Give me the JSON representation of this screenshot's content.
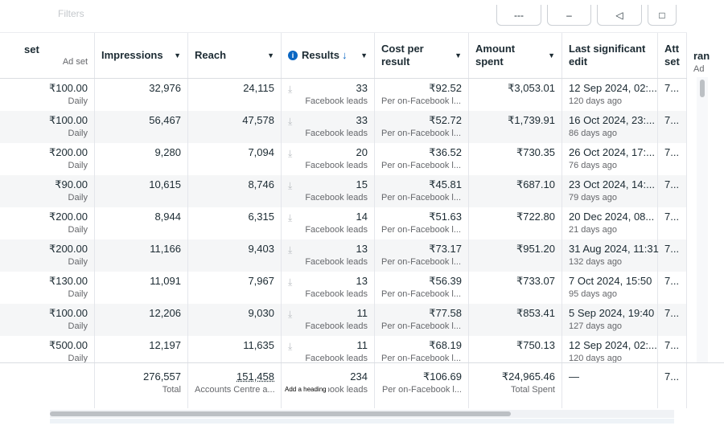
{
  "top": {
    "faint_text": "Filters"
  },
  "headers": [
    {
      "label": "set",
      "sub": "Ad set"
    },
    {
      "label": "Impressions"
    },
    {
      "label": "Reach"
    },
    {
      "label": "Results"
    },
    {
      "label": "Cost per result"
    },
    {
      "label": "Amount spent"
    },
    {
      "label": "Last significant edit"
    },
    {
      "label": "Att set"
    },
    {
      "label": "ran",
      "sub": "Ad"
    }
  ],
  "rows": [
    {
      "budget": "₹100.00",
      "budget_type": "Daily",
      "impressions": "32,976",
      "reach": "24,115",
      "results": "33",
      "results_type": "Facebook leads",
      "cpr": "₹92.52",
      "cpr_type": "Per on-Facebook l...",
      "spent": "₹3,053.01",
      "edit": "12 Sep 2024, 02:...",
      "edit_ago": "120 days ago",
      "att": "7..."
    },
    {
      "budget": "₹100.00",
      "budget_type": "Daily",
      "impressions": "56,467",
      "reach": "47,578",
      "results": "33",
      "results_type": "Facebook leads",
      "cpr": "₹52.72",
      "cpr_type": "Per on-Facebook l...",
      "spent": "₹1,739.91",
      "edit": "16 Oct 2024, 23:...",
      "edit_ago": "86 days ago",
      "att": "7..."
    },
    {
      "budget": "₹200.00",
      "budget_type": "Daily",
      "impressions": "9,280",
      "reach": "7,094",
      "results": "20",
      "results_type": "Facebook leads",
      "cpr": "₹36.52",
      "cpr_type": "Per on-Facebook l...",
      "spent": "₹730.35",
      "edit": "26 Oct 2024, 17:...",
      "edit_ago": "76 days ago",
      "att": "7..."
    },
    {
      "budget": "₹90.00",
      "budget_type": "Daily",
      "impressions": "10,615",
      "reach": "8,746",
      "results": "15",
      "results_type": "Facebook leads",
      "cpr": "₹45.81",
      "cpr_type": "Per on-Facebook l...",
      "spent": "₹687.10",
      "edit": "23 Oct 2024, 14:...",
      "edit_ago": "79 days ago",
      "att": "7..."
    },
    {
      "budget": "₹200.00",
      "budget_type": "Daily",
      "impressions": "8,944",
      "reach": "6,315",
      "results": "14",
      "results_type": "Facebook leads",
      "cpr": "₹51.63",
      "cpr_type": "Per on-Facebook l...",
      "spent": "₹722.80",
      "edit": "20 Dec 2024, 08...",
      "edit_ago": "21 days ago",
      "att": "7..."
    },
    {
      "budget": "₹200.00",
      "budget_type": "Daily",
      "impressions": "11,166",
      "reach": "9,403",
      "results": "13",
      "results_type": "Facebook leads",
      "cpr": "₹73.17",
      "cpr_type": "Per on-Facebook l...",
      "spent": "₹951.20",
      "edit": "31 Aug 2024, 11:31",
      "edit_ago": "132 days ago",
      "att": "7..."
    },
    {
      "budget": "₹130.00",
      "budget_type": "Daily",
      "impressions": "11,091",
      "reach": "7,967",
      "results": "13",
      "results_type": "Facebook leads",
      "cpr": "₹56.39",
      "cpr_type": "Per on-Facebook l...",
      "spent": "₹733.07",
      "edit": "7 Oct 2024, 15:50",
      "edit_ago": "95 days ago",
      "att": "7..."
    },
    {
      "budget": "₹100.00",
      "budget_type": "Daily",
      "impressions": "12,206",
      "reach": "9,030",
      "results": "11",
      "results_type": "Facebook leads",
      "cpr": "₹77.58",
      "cpr_type": "Per on-Facebook l...",
      "spent": "₹853.41",
      "edit": "5 Sep 2024, 19:40",
      "edit_ago": "127 days ago",
      "att": "7..."
    },
    {
      "budget": "₹500.00",
      "budget_type": "Daily",
      "impressions": "12,197",
      "reach": "11,635",
      "results": "11",
      "results_type": "Facebook leads",
      "cpr": "₹68.19",
      "cpr_type": "Per on-Facebook l...",
      "spent": "₹750.13",
      "edit": "12 Sep 2024, 02:...",
      "edit_ago": "120 days ago",
      "att": "7..."
    }
  ],
  "totals": {
    "impressions": "276,557",
    "impressions_label": "Total",
    "reach": "151,458",
    "reach_label": "Accounts Centre a...",
    "results": "234",
    "results_label": "ebook leads",
    "tooltip": "Add a heading",
    "cpr": "₹106.69",
    "cpr_label": "Per on-Facebook l...",
    "spent": "₹24,965.46",
    "spent_label": "Total Spent",
    "edit": "—",
    "att": "7..."
  },
  "colors": {
    "accent": "#0a66c2",
    "border": "#dadde1",
    "muted": "#65676b"
  }
}
